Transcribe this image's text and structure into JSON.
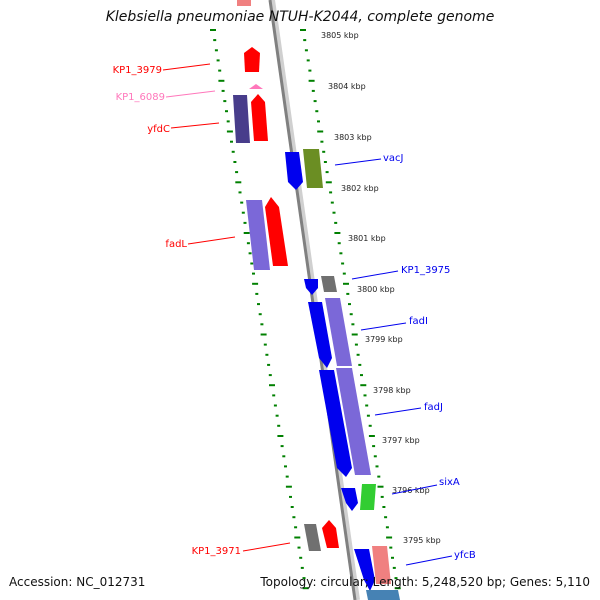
{
  "title": "Klebsiella pneumoniae NTUH-K2044, complete genome",
  "colors": {
    "forward": "#ff0000",
    "forward_light": "#f08080",
    "reverse": "#0000ee",
    "reverse_light": "#7b68d8",
    "dark_slate": "#483d8b",
    "olive": "#6b8e23",
    "green": "#32cd32",
    "gray": "#707070",
    "pink": "#ff77bb",
    "tick": "#008000"
  },
  "positions_kbp": [
    "3805 kbp",
    "3804 kbp",
    "3803 kbp",
    "3802 kbp",
    "3801 kbp",
    "3800 kbp",
    "3799 kbp",
    "3798 kbp",
    "3797 kbp",
    "3796 kbp",
    "3795 kbp"
  ],
  "genes_left": [
    "KP1_3979",
    "KP1_6089",
    "yfdC",
    "fadL",
    "KP1_3971"
  ],
  "genes_right": [
    "vacJ",
    "KP1_3975",
    "fadI",
    "fadJ",
    "sixA",
    "yfcB"
  ],
  "footer": {
    "accession": "Accession: NC_012731",
    "summary": "Topology: circular; Length: 5,248,520 bp; Genes: 5,110"
  }
}
